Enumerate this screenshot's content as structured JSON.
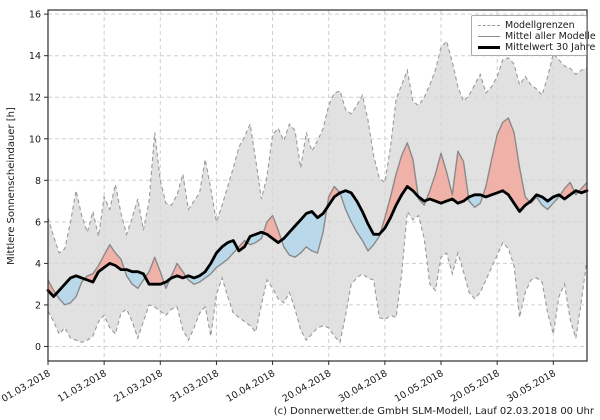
{
  "figure": {
    "caption": "(c) Donnerwetter.de GmbH SLM-Modell, Lauf 02.03.2018 00 Uhr",
    "legend": {
      "items": [
        {
          "label": "Modellgrenzen",
          "style": "dashed-gray"
        },
        {
          "label": "Mittel aller Modelle",
          "style": "solid-gray"
        },
        {
          "label": "Mittelwert 30 Jahre",
          "style": "solid-black-thick"
        }
      ]
    }
  },
  "chart_data": {
    "type": "line",
    "title": "",
    "xlabel": "",
    "ylabel": "Mittlere Sonnenscheindauer [h]",
    "x_unit": "date",
    "x_start": "01.03.2018",
    "x_end": "05.06.2018",
    "x_tick_labels": [
      "01.03.2018",
      "11.03.2018",
      "21.03.2018",
      "31.03.2018",
      "10.04.2018",
      "20.04.2018",
      "30.04.2018",
      "10.05.2018",
      "20.05.2018",
      "30.05.2018"
    ],
    "x_tick_day_indices": [
      0,
      10,
      20,
      30,
      40,
      50,
      60,
      70,
      80,
      90
    ],
    "y_ticks": [
      0,
      2,
      4,
      6,
      8,
      10,
      12,
      14,
      16
    ],
    "ylim": [
      -0.7,
      16.2
    ],
    "grid": true,
    "legend_position": "top-right",
    "colors": {
      "band_fill": "#d5d5d5",
      "band_edge": "#999999",
      "above_fill": "#f0b1a8",
      "below_fill": "#b9d9eb",
      "model_mean_line": "#8a8a8a",
      "mean30_line": "#000000",
      "grid_line": "#cfcfcf",
      "axis": "#2b2b2b",
      "text": "#1a1a1a"
    },
    "series": [
      {
        "name": "Modellgrenzen max",
        "style": "dashed",
        "values": [
          6.2,
          5.3,
          4.5,
          4.7,
          6.0,
          7.5,
          6.3,
          5.5,
          6.5,
          5.3,
          7.2,
          6.6,
          7.8,
          6.4,
          5.4,
          6.2,
          7.1,
          5.6,
          7.0,
          10.3,
          8.0,
          6.9,
          6.8,
          7.3,
          8.3,
          6.6,
          7.0,
          7.4,
          9.0,
          7.6,
          6.0,
          6.8,
          7.7,
          8.6,
          9.6,
          10.1,
          10.7,
          9.0,
          7.1,
          8.2,
          10.2,
          10.5,
          9.9,
          10.7,
          10.4,
          8.6,
          10.3,
          9.4,
          9.9,
          10.5,
          11.6,
          12.2,
          12.3,
          11.4,
          11.2,
          11.6,
          12.1,
          10.9,
          9.2,
          8.1,
          7.9,
          9.6,
          11.9,
          12.6,
          13.3,
          11.8,
          11.6,
          12.0,
          12.6,
          13.3,
          14.4,
          14.7,
          13.7,
          12.5,
          11.8,
          12.1,
          12.6,
          13.1,
          12.2,
          12.5,
          13.0,
          13.8,
          13.9,
          13.6,
          12.6,
          13.0,
          12.6,
          12.4,
          12.1,
          13.0,
          14.1,
          13.8,
          13.5,
          13.4,
          13.1,
          13.3,
          13.4
        ]
      },
      {
        "name": "Modellgrenzen min",
        "style": "dashed",
        "values": [
          1.7,
          1.2,
          0.6,
          0.9,
          0.4,
          0.3,
          0.2,
          0.3,
          0.5,
          1.2,
          1.5,
          0.9,
          0.6,
          1.6,
          1.8,
          1.2,
          0.4,
          1.2,
          2.0,
          1.9,
          1.7,
          1.5,
          1.8,
          1.9,
          0.8,
          0.3,
          0.9,
          1.6,
          1.9,
          0.5,
          2.5,
          3.3,
          2.4,
          1.6,
          1.4,
          1.2,
          1.0,
          0.7,
          2.0,
          3.2,
          2.8,
          2.3,
          2.1,
          2.6,
          1.8,
          0.8,
          0.3,
          0.6,
          0.9,
          1.0,
          0.9,
          0.5,
          0.2,
          1.5,
          3.0,
          3.3,
          3.5,
          3.3,
          3.2,
          1.4,
          1.3,
          1.5,
          1.4,
          3.5,
          6.5,
          6.1,
          6.3,
          5.2,
          3.0,
          2.7,
          4.3,
          4.5,
          3.5,
          4.5,
          3.6,
          2.6,
          2.3,
          2.6,
          3.2,
          3.8,
          4.4,
          5.0,
          4.7,
          3.9,
          1.4,
          2.6,
          3.2,
          3.3,
          3.1,
          1.6,
          0.6,
          2.4,
          3.0,
          1.3,
          0.4,
          2.2,
          4.2
        ]
      },
      {
        "name": "Mittel aller Modelle",
        "style": "solid",
        "values": [
          3.2,
          2.7,
          2.3,
          2.0,
          2.1,
          2.4,
          3.1,
          3.4,
          3.5,
          3.9,
          4.4,
          4.9,
          4.5,
          4.2,
          3.4,
          3.0,
          2.8,
          3.2,
          3.6,
          4.3,
          3.6,
          2.8,
          3.4,
          4.0,
          3.6,
          3.2,
          3.0,
          3.1,
          3.3,
          3.5,
          3.8,
          4.0,
          4.2,
          4.5,
          4.8,
          5.1,
          4.9,
          5.0,
          5.2,
          6.0,
          6.3,
          5.6,
          4.8,
          4.4,
          4.3,
          4.5,
          4.8,
          4.6,
          4.5,
          5.5,
          7.2,
          7.7,
          7.4,
          6.6,
          6.0,
          5.5,
          5.1,
          4.6,
          4.9,
          5.3,
          6.2,
          7.2,
          8.3,
          9.2,
          9.8,
          9.0,
          7.1,
          6.8,
          7.5,
          8.3,
          9.3,
          8.4,
          7.3,
          9.4,
          8.9,
          7.0,
          6.7,
          6.9,
          7.7,
          9.0,
          10.2,
          10.8,
          11.0,
          10.3,
          8.6,
          7.2,
          6.9,
          7.2,
          6.8,
          6.6,
          6.9,
          7.2,
          7.6,
          7.9,
          7.3,
          7.6,
          7.9
        ]
      },
      {
        "name": "Mittelwert 30 Jahre",
        "style": "solid-thick",
        "values": [
          2.7,
          2.4,
          2.7,
          3.0,
          3.3,
          3.4,
          3.3,
          3.2,
          3.1,
          3.6,
          3.8,
          4.0,
          3.9,
          3.7,
          3.7,
          3.6,
          3.6,
          3.5,
          3.0,
          3.0,
          3.0,
          3.1,
          3.3,
          3.4,
          3.3,
          3.4,
          3.3,
          3.4,
          3.6,
          4.0,
          4.5,
          4.8,
          5.0,
          5.1,
          4.6,
          4.8,
          5.3,
          5.4,
          5.5,
          5.4,
          5.2,
          5.0,
          5.2,
          5.5,
          5.8,
          6.1,
          6.4,
          6.5,
          6.2,
          6.4,
          6.8,
          7.2,
          7.4,
          7.5,
          7.4,
          7.0,
          6.5,
          5.9,
          5.4,
          5.4,
          5.7,
          6.2,
          6.8,
          7.3,
          7.7,
          7.5,
          7.2,
          7.0,
          7.1,
          7.0,
          6.9,
          7.0,
          7.1,
          6.9,
          7.0,
          7.2,
          7.3,
          7.3,
          7.2,
          7.3,
          7.4,
          7.5,
          7.3,
          6.9,
          6.5,
          6.8,
          7.0,
          7.3,
          7.2,
          7.0,
          7.2,
          7.3,
          7.1,
          7.3,
          7.5,
          7.4,
          7.5
        ]
      }
    ]
  }
}
